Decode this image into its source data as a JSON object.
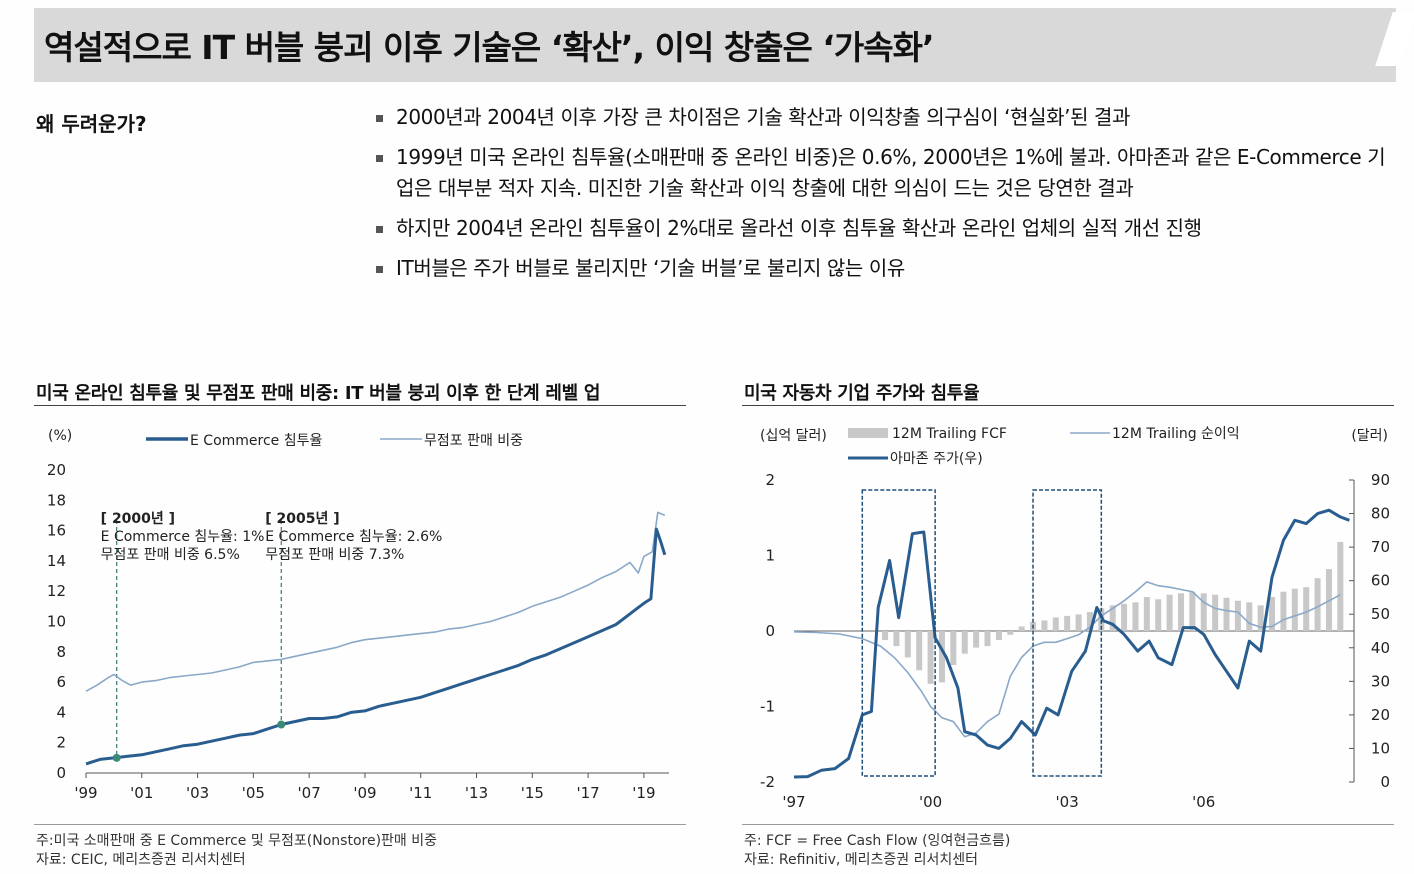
{
  "header": {
    "title": "역설적으로 IT 버블 붕괴 이후 기술은 ‘확산’, 이익 창출은 ‘가속화’"
  },
  "intro": {
    "question": "왜 두려운가?",
    "bullets": [
      "2000년과 2004년 이후 가장 큰 차이점은 기술 확산과 이익창출 의구심이 ‘현실화’된 결과",
      "1999년 미국 온라인 침투율(소매판매 중 온라인 비중)은 0.6%, 2000년은 1%에 불과. 아마존과 같은 E-Commerce 기업은 대부분 적자 지속. 미진한 기술 확산과 이익 창출에 대한 의심이 드는 것은 당연한 결과",
      "하지만 2004년 온라인 침투율이 2%대로  올라선 이후 침투율 확산과 온라인 업체의 실적 개선 진행",
      "IT버블은 주가 버블로 불리지만 ‘기술 버블’로 불리지 않는 이유"
    ]
  },
  "left_panel": {
    "title": "미국 온라인 침투율 및 무점포 판매 비중: IT 버블 붕괴 이후 한 단계 레벨 업",
    "footnote": "주:미국 소매판매 중 E Commerce 및 무점포(Nonstore)판매 비중",
    "source": "자료: CEIC, 메리츠증권 리서치센터"
  },
  "right_panel": {
    "title": "미국 자동차 기업 주가와 침투율",
    "footnote": "주: FCF = Free Cash Flow (잉여현금흐름)",
    "source": "자료: Refinitiv, 메리츠증권 리서치센터"
  },
  "chart_data": [
    {
      "type": "line",
      "unit_label": "(%)",
      "ylim": [
        0,
        20
      ],
      "yticks": [
        "20",
        "18",
        "16",
        "14",
        "12",
        "10",
        "8",
        "6",
        "4",
        "2",
        "0"
      ],
      "xlim": [
        1999,
        2019.9
      ],
      "xticks": [
        {
          "x": 1999,
          "label": "'99"
        },
        {
          "x": 2001,
          "label": "'01"
        },
        {
          "x": 2003,
          "label": "'03"
        },
        {
          "x": 2005,
          "label": "'05"
        },
        {
          "x": 2007,
          "label": "'07"
        },
        {
          "x": 2009,
          "label": "'09"
        },
        {
          "x": 2011,
          "label": "'11"
        },
        {
          "x": 2013,
          "label": "'13"
        },
        {
          "x": 2015,
          "label": "'15"
        },
        {
          "x": 2017,
          "label": "'17"
        },
        {
          "x": 2019,
          "label": "'19"
        }
      ],
      "series": [
        {
          "name": "E Commerce 침투율",
          "color": "#2a5d8f",
          "x": [
            1999.0,
            1999.5,
            2000.0,
            2000.5,
            2001.0,
            2001.5,
            2002.0,
            2002.5,
            2003.0,
            2003.5,
            2004.0,
            2004.5,
            2005.0,
            2005.5,
            2006.0,
            2006.5,
            2007.0,
            2007.5,
            2008.0,
            2008.5,
            2009.0,
            2009.5,
            2010.0,
            2010.5,
            2011.0,
            2011.5,
            2012.0,
            2012.5,
            2013.0,
            2013.5,
            2014.0,
            2014.5,
            2015.0,
            2015.5,
            2016.0,
            2016.5,
            2017.0,
            2017.5,
            2018.0,
            2018.5,
            2019.0,
            2019.25,
            2019.45,
            2019.6,
            2019.75
          ],
          "values": [
            0.6,
            0.9,
            1.0,
            1.1,
            1.2,
            1.4,
            1.6,
            1.8,
            1.9,
            2.1,
            2.3,
            2.5,
            2.6,
            2.9,
            3.2,
            3.4,
            3.6,
            3.6,
            3.7,
            4.0,
            4.1,
            4.4,
            4.6,
            4.8,
            5.0,
            5.3,
            5.6,
            5.9,
            6.2,
            6.5,
            6.8,
            7.1,
            7.5,
            7.8,
            8.2,
            8.6,
            9.0,
            9.4,
            9.8,
            10.5,
            11.2,
            11.5,
            16.1,
            15.3,
            14.4
          ]
        },
        {
          "name": "무점포 판매 비중",
          "color": "#8aa8c8",
          "x": [
            1999.0,
            1999.4,
            1999.8,
            2000.0,
            2000.3,
            2000.6,
            2001.0,
            2001.5,
            2002.0,
            2002.5,
            2003.0,
            2003.5,
            2004.0,
            2004.5,
            2005.0,
            2005.5,
            2006.0,
            2006.5,
            2007.0,
            2007.5,
            2008.0,
            2008.5,
            2009.0,
            2009.5,
            2010.0,
            2010.5,
            2011.0,
            2011.5,
            2012.0,
            2012.5,
            2013.0,
            2013.5,
            2014.0,
            2014.5,
            2015.0,
            2015.5,
            2016.0,
            2016.5,
            2017.0,
            2017.5,
            2018.0,
            2018.5,
            2018.8,
            2019.0,
            2019.3,
            2019.5,
            2019.75
          ],
          "values": [
            5.4,
            5.8,
            6.3,
            6.5,
            6.1,
            5.8,
            6.0,
            6.1,
            6.3,
            6.4,
            6.5,
            6.6,
            6.8,
            7.0,
            7.3,
            7.4,
            7.5,
            7.7,
            7.9,
            8.1,
            8.3,
            8.6,
            8.8,
            8.9,
            9.0,
            9.1,
            9.2,
            9.3,
            9.5,
            9.6,
            9.8,
            10.0,
            10.3,
            10.6,
            11.0,
            11.3,
            11.6,
            12.0,
            12.4,
            12.9,
            13.3,
            13.9,
            13.2,
            14.3,
            14.6,
            17.2,
            17.0
          ]
        }
      ],
      "annotations": [
        {
          "x": 2000.1,
          "y": 1.0,
          "lines": [
            "[ 2000년 ]",
            "E Commerce 침누율: 1%",
            "무점포 판매  비중 6.5%"
          ]
        },
        {
          "x": 2006.0,
          "y": 3.2,
          "lines": [
            "[ 2005년 ]",
            "E Commerce 침누율: 2.6%",
            "무점포 판매  비중 7.3%"
          ]
        }
      ]
    },
    {
      "type": "bar+line",
      "left_unit_label": "(십억 달러)",
      "right_unit_label": "(달러)",
      "y_left_lim": [
        -2,
        2
      ],
      "y_left_ticks": [
        "2",
        "1",
        "0",
        "-1",
        "-2"
      ],
      "y_right_lim": [
        0,
        90
      ],
      "y_right_ticks": [
        "90",
        "80",
        "70",
        "60",
        "50",
        "40",
        "30",
        "20",
        "10",
        "0"
      ],
      "xlim": [
        1997,
        2009.3
      ],
      "xticks": [
        {
          "x": 1997,
          "label": "'97"
        },
        {
          "x": 2000,
          "label": "'00"
        },
        {
          "x": 2003,
          "label": "'03"
        },
        {
          "x": 2006,
          "label": "'06"
        }
      ],
      "highlight_boxes": [
        {
          "x0": 1998.5,
          "x1": 2000.1,
          "y0": 75,
          "y1": 88
        },
        {
          "x0": 2002.25,
          "x1": 2003.75,
          "y0": 75,
          "y1": 88
        }
      ],
      "series": [
        {
          "name": "12M Trailing FCF",
          "type": "bar",
          "axis": "left",
          "color": "#c8c8c8",
          "x": [
            1999.0,
            1999.25,
            1999.5,
            1999.75,
            2000.0,
            2000.25,
            2000.5,
            2000.75,
            2001.0,
            2001.25,
            2001.5,
            2001.75,
            2002.0,
            2002.25,
            2002.5,
            2002.75,
            2003.0,
            2003.25,
            2003.5,
            2003.75,
            2004.0,
            2004.25,
            2004.5,
            2004.75,
            2005.0,
            2005.25,
            2005.5,
            2005.75,
            2006.0,
            2006.25,
            2006.5,
            2006.75,
            2007.0,
            2007.25,
            2007.5,
            2007.75,
            2008.0,
            2008.25,
            2008.5,
            2008.75,
            2009.0
          ],
          "values": [
            -0.12,
            -0.2,
            -0.35,
            -0.52,
            -0.7,
            -0.68,
            -0.45,
            -0.3,
            -0.22,
            -0.2,
            -0.12,
            -0.05,
            0.06,
            0.12,
            0.14,
            0.18,
            0.2,
            0.22,
            0.25,
            0.3,
            0.34,
            0.36,
            0.38,
            0.45,
            0.42,
            0.48,
            0.5,
            0.52,
            0.5,
            0.48,
            0.44,
            0.4,
            0.38,
            0.34,
            0.45,
            0.52,
            0.56,
            0.58,
            0.7,
            0.82,
            1.18
          ]
        },
        {
          "name": "12M Trailing 순이익",
          "type": "line",
          "axis": "left",
          "color": "#8aa8c8",
          "x": [
            1997.0,
            1997.5,
            1998.0,
            1998.5,
            1998.9,
            1999.2,
            1999.5,
            1999.8,
            2000.0,
            2000.25,
            2000.5,
            2000.75,
            2001.0,
            2001.25,
            2001.5,
            2001.75,
            2002.0,
            2002.25,
            2002.5,
            2002.75,
            2003.0,
            2003.25,
            2003.5,
            2003.75,
            2004.0,
            2004.25,
            2004.5,
            2004.75,
            2005.0,
            2005.25,
            2005.5,
            2005.75,
            2006.0,
            2006.25,
            2006.5,
            2006.75,
            2007.0,
            2007.25,
            2007.5,
            2007.75,
            2008.0,
            2008.25,
            2008.5,
            2008.75,
            2009.0
          ],
          "values": [
            -0.01,
            -0.02,
            -0.04,
            -0.1,
            -0.2,
            -0.35,
            -0.55,
            -0.8,
            -1.0,
            -1.15,
            -1.2,
            -1.4,
            -1.35,
            -1.2,
            -1.1,
            -0.6,
            -0.35,
            -0.2,
            -0.15,
            -0.15,
            -0.1,
            -0.05,
            0.05,
            0.2,
            0.3,
            0.4,
            0.52,
            0.65,
            0.6,
            0.58,
            0.55,
            0.52,
            0.38,
            0.3,
            0.27,
            0.25,
            0.1,
            0.05,
            0.06,
            0.15,
            0.2,
            0.25,
            0.32,
            0.4,
            0.48
          ]
        },
        {
          "name": "아마존 주가(우)",
          "type": "line",
          "axis": "right",
          "color": "#2a5d8f",
          "x": [
            1997.0,
            1997.3,
            1997.6,
            1997.9,
            1998.2,
            1998.5,
            1998.7,
            1998.85,
            1999.1,
            1999.3,
            1999.6,
            1999.85,
            2000.1,
            2000.35,
            2000.6,
            2000.75,
            2001.0,
            2001.25,
            2001.5,
            2001.75,
            2002.0,
            2002.3,
            2002.55,
            2002.8,
            2003.1,
            2003.4,
            2003.65,
            2003.8,
            2004.0,
            2004.25,
            2004.55,
            2004.8,
            2005.0,
            2005.3,
            2005.55,
            2005.8,
            2006.0,
            2006.25,
            2006.5,
            2006.75,
            2007.0,
            2007.25,
            2007.5,
            2007.75,
            2008.0,
            2008.25,
            2008.5,
            2008.75,
            2009.0,
            2009.2
          ],
          "values": [
            1.5,
            1.6,
            3.5,
            4.0,
            7.0,
            20.0,
            21.0,
            52.0,
            66.0,
            49.0,
            74.0,
            74.5,
            43.0,
            37.0,
            28.0,
            15.0,
            14.0,
            11.0,
            10.0,
            13.0,
            18.0,
            14.0,
            22.0,
            20.0,
            33.0,
            39.0,
            52.0,
            48.0,
            47.0,
            44.0,
            39.0,
            42.0,
            37.0,
            35.0,
            46.0,
            46.0,
            44.0,
            38.0,
            33.0,
            28.0,
            42.0,
            39.0,
            61.0,
            72.0,
            78.0,
            77.0,
            80.0,
            81.0,
            79.0,
            78.0
          ]
        }
      ]
    }
  ]
}
